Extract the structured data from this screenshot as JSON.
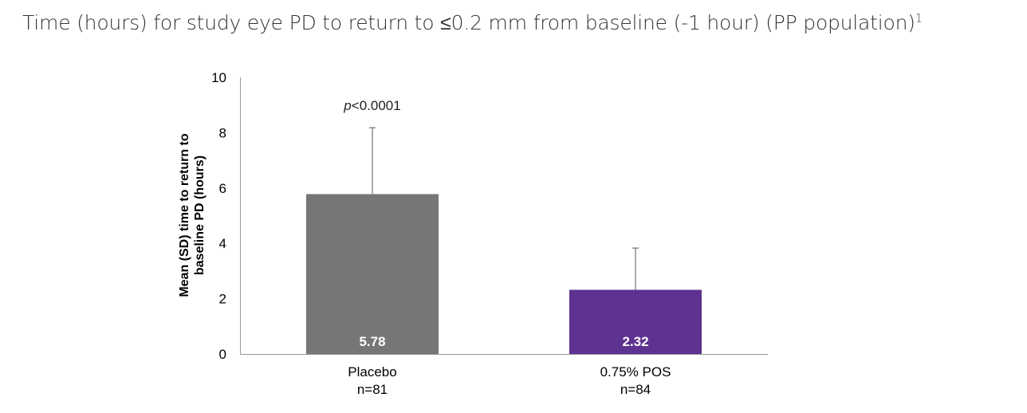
{
  "chart_data": {
    "type": "bar",
    "title": "Time (hours) for study eye PD to return to ≤0.2 mm from baseline (-1 hour) (PP population)",
    "title_superscript": "1",
    "ylabel_lines": [
      "Mean (SD) time to return to",
      "baseline PD (hours)"
    ],
    "xlabel": "",
    "ylim": [
      0,
      10
    ],
    "yticks": [
      0,
      2,
      4,
      6,
      8,
      10
    ],
    "grid": false,
    "categories": [
      {
        "label": "Placebo",
        "n": "n=81"
      },
      {
        "label": "0.75% POS",
        "n": "n=84"
      }
    ],
    "values": [
      5.78,
      2.32
    ],
    "value_labels": [
      "5.78",
      "2.32"
    ],
    "sd": [
      2.4,
      1.51
    ],
    "colors": [
      "#767676",
      "#5e3290"
    ],
    "annotation": {
      "p_prefix": "p",
      "p_text": "<0.0001"
    }
  }
}
